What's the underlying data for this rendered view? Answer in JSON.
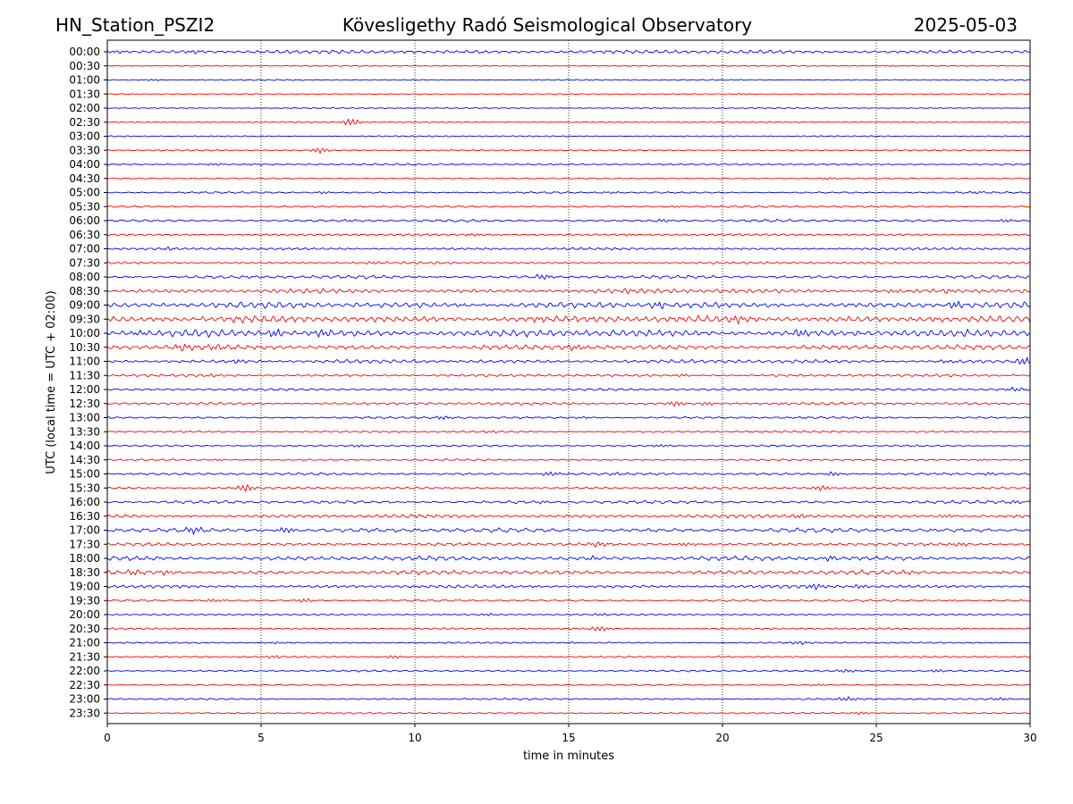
{
  "chart_data": {
    "type": "line",
    "title_left": "HN_Station_PSZI2",
    "title": "Kövesligethy Radó Seismological Observatory",
    "title_right": "2025-05-03",
    "xlabel": "time in minutes",
    "ylabel": "UTC (local time = UTC + 02:00)",
    "xlim": [
      0,
      30
    ],
    "xticks": [
      0,
      5,
      10,
      15,
      20,
      25,
      30
    ],
    "grid": "vertical-dotted",
    "series_colors": [
      "#0000ff",
      "#ff0000"
    ],
    "rows": [
      {
        "label": "00:00",
        "activity": 2,
        "bursts": [
          [
            0.3,
            0.8
          ],
          [
            2.8,
            1.0
          ],
          [
            9.0,
            0.5
          ],
          [
            28.5,
            0.5
          ]
        ]
      },
      {
        "label": "00:30",
        "activity": 0.6,
        "bursts": [
          [
            25.5,
            0.5
          ]
        ]
      },
      {
        "label": "01:00",
        "activity": 0.7,
        "bursts": [
          [
            1.5,
            0.6
          ],
          [
            4.5,
            0.6
          ]
        ]
      },
      {
        "label": "01:30",
        "activity": 0.5,
        "bursts": [
          [
            20.6,
            0.6
          ]
        ]
      },
      {
        "label": "02:00",
        "activity": 0.6,
        "bursts": []
      },
      {
        "label": "02:30",
        "activity": 0.7,
        "bursts": [
          [
            7.9,
            3.0
          ]
        ]
      },
      {
        "label": "03:00",
        "activity": 0.7,
        "bursts": []
      },
      {
        "label": "03:30",
        "activity": 0.8,
        "bursts": [
          [
            6.9,
            2.0
          ],
          [
            11.0,
            0.6
          ]
        ]
      },
      {
        "label": "04:00",
        "activity": 1.0,
        "bursts": [
          [
            3.5,
            0.8
          ],
          [
            5.0,
            0.6
          ]
        ]
      },
      {
        "label": "04:30",
        "activity": 0.7,
        "bursts": [
          [
            23.5,
            1.2
          ]
        ]
      },
      {
        "label": "05:00",
        "activity": 1.0,
        "bursts": [
          [
            7.0,
            1.0
          ],
          [
            16.5,
            0.6
          ],
          [
            28.2,
            0.6
          ]
        ]
      },
      {
        "label": "05:30",
        "activity": 1.2,
        "bursts": [
          [
            18.5,
            1.0
          ]
        ]
      },
      {
        "label": "06:00",
        "activity": 1.4,
        "bursts": [
          [
            8.0,
            1.0
          ],
          [
            18.0,
            1.2
          ],
          [
            29.2,
            1.0
          ]
        ]
      },
      {
        "label": "06:30",
        "activity": 1.3,
        "bursts": [
          [
            12.0,
            0.8
          ],
          [
            17.0,
            0.8
          ]
        ]
      },
      {
        "label": "07:00",
        "activity": 1.4,
        "bursts": [
          [
            1.9,
            1.0
          ],
          [
            11.5,
            0.8
          ]
        ]
      },
      {
        "label": "07:30",
        "activity": 1.3,
        "bursts": [
          [
            8.7,
            1.2
          ]
        ]
      },
      {
        "label": "08:00",
        "activity": 1.8,
        "bursts": [
          [
            14.1,
            2.0
          ],
          [
            23.0,
            0.8
          ]
        ]
      },
      {
        "label": "08:30",
        "activity": 2.4,
        "bursts": [
          [
            17.0,
            1.2
          ],
          [
            25.5,
            1.2
          ],
          [
            27.5,
            1.2
          ]
        ]
      },
      {
        "label": "09:00",
        "activity": 3.2,
        "bursts": [
          [
            11.5,
            1.5
          ],
          [
            18.0,
            2.0
          ],
          [
            27.5,
            2.5
          ]
        ]
      },
      {
        "label": "09:30",
        "activity": 3.8,
        "bursts": [
          [
            8.0,
            2.0
          ],
          [
            14.0,
            2.0
          ],
          [
            20.5,
            2.0
          ],
          [
            27.0,
            2.0
          ],
          [
            29.5,
            2.0
          ]
        ]
      },
      {
        "label": "10:00",
        "activity": 3.8,
        "bursts": [
          [
            1.0,
            2.0
          ],
          [
            5.5,
            2.5
          ],
          [
            7.0,
            2.0
          ],
          [
            22.5,
            2.0
          ]
        ]
      },
      {
        "label": "10:30",
        "activity": 2.8,
        "bursts": [
          [
            2.5,
            2.0
          ],
          [
            3.5,
            1.5
          ],
          [
            12.2,
            1.5
          ],
          [
            15.2,
            1.5
          ]
        ]
      },
      {
        "label": "11:00",
        "activity": 2.0,
        "bursts": [
          [
            4.3,
            1.2
          ],
          [
            27.2,
            1.2
          ],
          [
            29.8,
            2.5
          ]
        ]
      },
      {
        "label": "11:30",
        "activity": 1.4,
        "bursts": [
          [
            3.3,
            0.8
          ],
          [
            18.7,
            1.0
          ]
        ]
      },
      {
        "label": "12:00",
        "activity": 1.3,
        "bursts": [
          [
            12.5,
            0.6
          ],
          [
            21.2,
            0.8
          ],
          [
            29.5,
            1.2
          ]
        ]
      },
      {
        "label": "12:30",
        "activity": 1.4,
        "bursts": [
          [
            18.5,
            2.0
          ],
          [
            19.5,
            1.5
          ],
          [
            22.0,
            1.0
          ]
        ]
      },
      {
        "label": "13:00",
        "activity": 1.2,
        "bursts": [
          [
            10.9,
            1.2
          ],
          [
            15.5,
            0.8
          ]
        ]
      },
      {
        "label": "13:30",
        "activity": 1.1,
        "bursts": [
          [
            12.5,
            1.0
          ],
          [
            7.7,
            0.6
          ]
        ]
      },
      {
        "label": "14:00",
        "activity": 1.0,
        "bursts": [
          [
            8.2,
            0.8
          ],
          [
            18.0,
            0.8
          ],
          [
            26.5,
            0.6
          ]
        ]
      },
      {
        "label": "14:30",
        "activity": 1.0,
        "bursts": [
          [
            3.6,
            0.6
          ],
          [
            28.5,
            0.6
          ]
        ]
      },
      {
        "label": "15:00",
        "activity": 1.4,
        "bursts": [
          [
            14.4,
            1.5
          ],
          [
            16.5,
            1.5
          ],
          [
            23.6,
            1.5
          ],
          [
            28.6,
            1.2
          ]
        ]
      },
      {
        "label": "15:30",
        "activity": 1.2,
        "bursts": [
          [
            4.5,
            3.0
          ],
          [
            23.2,
            2.0
          ]
        ]
      },
      {
        "label": "16:00",
        "activity": 1.7,
        "bursts": [
          [
            14.2,
            1.0
          ],
          [
            29.5,
            0.8
          ]
        ]
      },
      {
        "label": "16:30",
        "activity": 2.0,
        "bursts": [
          [
            22.5,
            1.2
          ],
          [
            27.3,
            1.2
          ]
        ]
      },
      {
        "label": "17:00",
        "activity": 2.4,
        "bursts": [
          [
            2.8,
            2.0
          ],
          [
            5.8,
            2.0
          ],
          [
            11.0,
            1.0
          ]
        ]
      },
      {
        "label": "17:30",
        "activity": 1.8,
        "bursts": [
          [
            16.0,
            1.5
          ],
          [
            18.8,
            1.2
          ],
          [
            25.0,
            1.2
          ],
          [
            27.8,
            1.2
          ]
        ]
      },
      {
        "label": "18:00",
        "activity": 2.5,
        "bursts": [
          [
            15.8,
            2.0
          ],
          [
            23.5,
            2.5
          ],
          [
            29.5,
            1.0
          ]
        ]
      },
      {
        "label": "18:30",
        "activity": 2.4,
        "bursts": [
          [
            0.8,
            2.0
          ],
          [
            1.8,
            2.0
          ],
          [
            26.0,
            0.8
          ]
        ]
      },
      {
        "label": "19:00",
        "activity": 1.8,
        "bursts": [
          [
            23.0,
            2.0
          ],
          [
            24.5,
            2.0
          ]
        ]
      },
      {
        "label": "19:30",
        "activity": 1.2,
        "bursts": [
          [
            3.4,
            1.0
          ],
          [
            6.4,
            1.5
          ],
          [
            27.6,
            0.8
          ]
        ]
      },
      {
        "label": "20:00",
        "activity": 0.9,
        "bursts": [
          [
            12.5,
            0.8
          ],
          [
            16.0,
            0.8
          ]
        ]
      },
      {
        "label": "20:30",
        "activity": 1.0,
        "bursts": [
          [
            16.0,
            2.0
          ],
          [
            27.8,
            0.8
          ]
        ]
      },
      {
        "label": "21:00",
        "activity": 0.9,
        "bursts": [
          [
            5.5,
            0.8
          ],
          [
            15.2,
            0.8
          ],
          [
            22.5,
            1.0
          ]
        ]
      },
      {
        "label": "21:30",
        "activity": 0.9,
        "bursts": [
          [
            5.5,
            1.2
          ],
          [
            9.3,
            1.2
          ],
          [
            20.0,
            0.6
          ]
        ]
      },
      {
        "label": "22:00",
        "activity": 1.0,
        "bursts": [
          [
            24.0,
            1.0
          ],
          [
            27.0,
            1.2
          ]
        ]
      },
      {
        "label": "22:30",
        "activity": 0.8,
        "bursts": [
          [
            23.0,
            0.8
          ]
        ]
      },
      {
        "label": "23:00",
        "activity": 1.0,
        "bursts": [
          [
            24.0,
            1.5
          ],
          [
            29.0,
            0.8
          ]
        ]
      },
      {
        "label": "23:30",
        "activity": 0.9,
        "bursts": [
          [
            24.5,
            1.0
          ]
        ]
      }
    ]
  }
}
